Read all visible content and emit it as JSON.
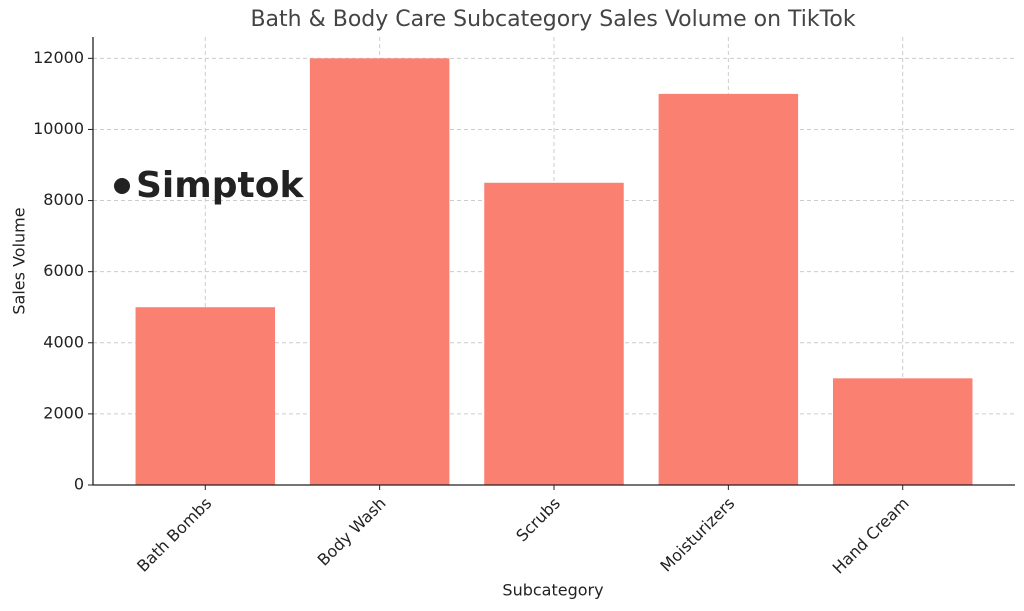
{
  "chart_data": {
    "type": "bar",
    "title": "Bath & Body Care Subcategory Sales Volume on TikTok",
    "x_label": "Subcategory",
    "y_label": "Sales Volume",
    "categories": [
      "Bath Bombs",
      "Body Wash",
      "Scrubs",
      "Moisturizers",
      "Hand Cream"
    ],
    "values": [
      5000,
      12000,
      8500,
      11000,
      3000
    ],
    "color": "#fa8072",
    "ylim": [
      0,
      12600
    ],
    "yticks": [
      0,
      2000,
      4000,
      6000,
      8000,
      10000,
      12000
    ],
    "grid": true,
    "watermark": "Simptok"
  }
}
